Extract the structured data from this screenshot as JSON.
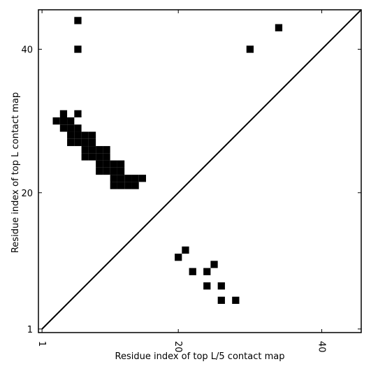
{
  "chart_data": {
    "type": "heatmap",
    "title": "",
    "xlabel": "Residue index of top L/5 contact map",
    "ylabel": "Residue index of top L contact map",
    "xlim": [
      0.5,
      45.5
    ],
    "ylim": [
      0.5,
      45.5
    ],
    "xticks": [
      1,
      20,
      40
    ],
    "yticks": [
      1,
      20,
      40
    ],
    "x_tick_rotation": -90,
    "grid": false,
    "diagonal": true,
    "cell_color": "#000000",
    "line_color": "#000000",
    "upper_triangle_cells": [
      [
        6,
        44
      ],
      [
        6,
        40
      ],
      [
        30,
        40
      ],
      [
        34,
        43
      ],
      [
        4,
        31
      ],
      [
        6,
        31
      ],
      [
        3,
        30
      ],
      [
        4,
        30
      ],
      [
        5,
        30
      ],
      [
        4,
        29
      ],
      [
        5,
        29
      ],
      [
        6,
        29
      ],
      [
        5,
        28
      ],
      [
        6,
        28
      ],
      [
        7,
        28
      ],
      [
        8,
        28
      ],
      [
        5,
        27
      ],
      [
        6,
        27
      ],
      [
        7,
        27
      ],
      [
        8,
        27
      ],
      [
        7,
        26
      ],
      [
        8,
        26
      ],
      [
        9,
        26
      ],
      [
        10,
        26
      ],
      [
        7,
        25
      ],
      [
        8,
        25
      ],
      [
        9,
        25
      ],
      [
        10,
        25
      ],
      [
        9,
        24
      ],
      [
        10,
        24
      ],
      [
        11,
        24
      ],
      [
        12,
        24
      ],
      [
        9,
        23
      ],
      [
        10,
        23
      ],
      [
        11,
        23
      ],
      [
        12,
        23
      ],
      [
        11,
        22
      ],
      [
        12,
        22
      ],
      [
        13,
        22
      ],
      [
        14,
        22
      ],
      [
        15,
        22
      ],
      [
        11,
        21
      ],
      [
        12,
        21
      ],
      [
        13,
        21
      ],
      [
        14,
        21
      ]
    ],
    "lower_triangle_cells": [
      [
        21,
        12
      ],
      [
        20,
        11
      ],
      [
        25,
        10
      ],
      [
        22,
        9
      ],
      [
        24,
        9
      ],
      [
        24,
        7
      ],
      [
        26,
        7
      ],
      [
        26,
        5
      ],
      [
        28,
        5
      ]
    ]
  }
}
